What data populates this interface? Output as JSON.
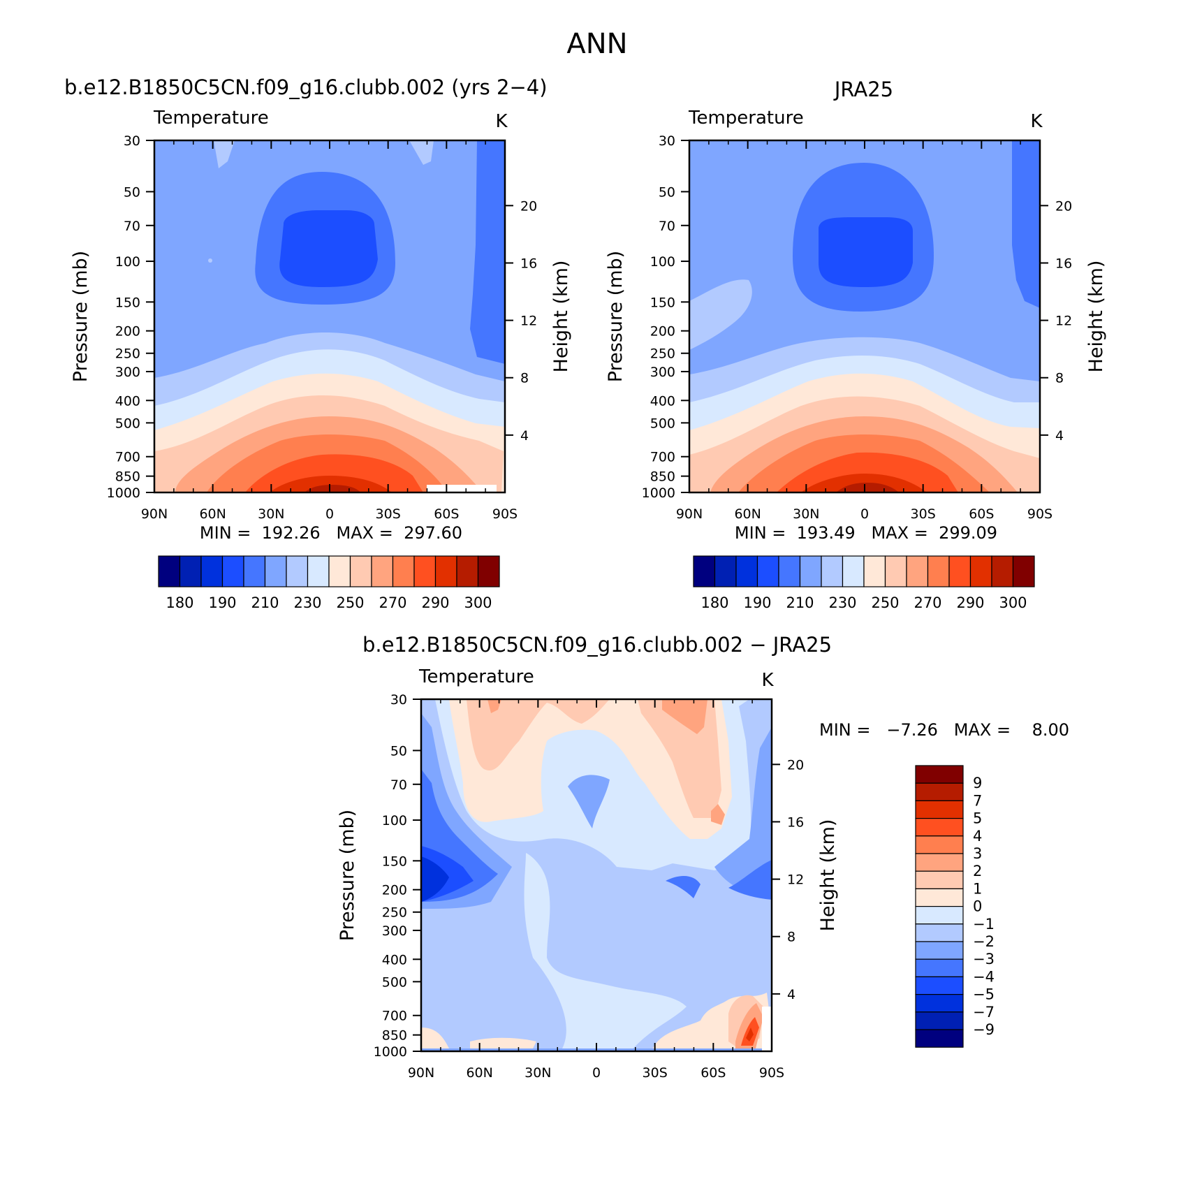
{
  "figure": {
    "title": "ANN"
  },
  "panels": [
    {
      "id": "model",
      "title": "b.e12.B1850C5CN.f09_g16.clubb.002 (yrs 2−4)",
      "variable": "Temperature",
      "units": "K",
      "ylabel": "Pressure (mb)",
      "y2label": "Height (km)",
      "minmax": "MIN =  192.26   MAX =  297.60"
    },
    {
      "id": "obs",
      "title": "JRA25",
      "variable": "Temperature",
      "units": "K",
      "ylabel": "Pressure (mb)",
      "y2label": "Height (km)",
      "minmax": "MIN =  193.49   MAX =  299.09"
    },
    {
      "id": "diff",
      "title": "b.e12.B1850C5CN.f09_g16.clubb.002 − JRA25",
      "variable": "Temperature",
      "units": "K",
      "ylabel": "Pressure (mb)",
      "y2label": "Height (km)",
      "minmax": "MIN =   −7.26   MAX =    8.00"
    }
  ],
  "chart_data": [
    {
      "type": "heatmap",
      "panel": "model",
      "x_ticks": [
        "90N",
        "60N",
        "30N",
        "0",
        "30S",
        "60S",
        "90S"
      ],
      "y_ticks_pressure": [
        30,
        50,
        70,
        100,
        150,
        200,
        250,
        300,
        400,
        500,
        700,
        850,
        1000
      ],
      "y_ticks_height_km": [
        4,
        8,
        12,
        16,
        20
      ],
      "y_scale": "log",
      "colorbar": {
        "levels": [
          180,
          190,
          210,
          230,
          250,
          270,
          290,
          300
        ],
        "orientation": "horizontal"
      },
      "min": 192.26,
      "max": 297.6
    },
    {
      "type": "heatmap",
      "panel": "obs",
      "x_ticks": [
        "90N",
        "60N",
        "30N",
        "0",
        "30S",
        "60S",
        "90S"
      ],
      "y_ticks_pressure": [
        30,
        50,
        70,
        100,
        150,
        200,
        250,
        300,
        400,
        500,
        700,
        850,
        1000
      ],
      "y_ticks_height_km": [
        4,
        8,
        12,
        16,
        20
      ],
      "y_scale": "log",
      "colorbar": {
        "levels": [
          180,
          190,
          210,
          230,
          250,
          270,
          290,
          300
        ],
        "orientation": "horizontal"
      },
      "min": 193.49,
      "max": 299.09
    },
    {
      "type": "heatmap",
      "panel": "diff",
      "x_ticks": [
        "90N",
        "60N",
        "30N",
        "0",
        "30S",
        "60S",
        "90S"
      ],
      "y_ticks_pressure": [
        30,
        50,
        70,
        100,
        150,
        200,
        250,
        300,
        400,
        500,
        700,
        850,
        1000
      ],
      "y_ticks_height_km": [
        4,
        8,
        12,
        16,
        20
      ],
      "y_scale": "log",
      "colorbar": {
        "levels": [
          "9",
          "7",
          "5",
          "4",
          "3",
          "2",
          "1",
          "0",
          "−1",
          "−2",
          "−3",
          "−4",
          "−5",
          "−7",
          "−9"
        ],
        "orientation": "vertical"
      },
      "min": -7.26,
      "max": 8.0
    }
  ],
  "palette": [
    "#00007f",
    "#0020b3",
    "#0031dd",
    "#1c4eff",
    "#4576ff",
    "#7fa6ff",
    "#b2caff",
    "#d8e9ff",
    "#ffe8d8",
    "#ffcab2",
    "#ffa47f",
    "#ff7f4f",
    "#ff5020",
    "#e23000",
    "#b51c00",
    "#800000"
  ]
}
